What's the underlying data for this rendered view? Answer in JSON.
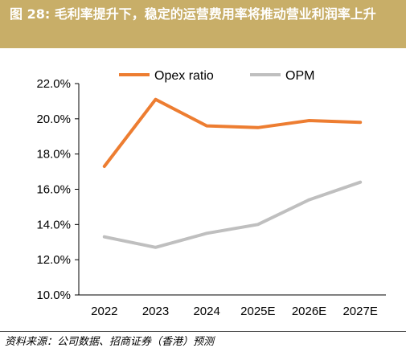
{
  "title": "图 28: 毛利率提升下，稳定的运营费用率将推动营业利润率上升",
  "source": "资料来源：公司数据、招商证券（香港）预测",
  "chart_data": {
    "type": "line",
    "categories": [
      "2022",
      "2023",
      "2024",
      "2025E",
      "2026E",
      "2027E"
    ],
    "series": [
      {
        "name": "Opex ratio",
        "color": "#ed7d31",
        "values": [
          17.3,
          21.1,
          19.6,
          19.5,
          19.9,
          19.8
        ]
      },
      {
        "name": "OPM",
        "color": "#bfbfbf",
        "values": [
          13.3,
          12.7,
          13.5,
          14.0,
          15.4,
          16.4
        ]
      }
    ],
    "yticks": [
      "10.0%",
      "12.0%",
      "14.0%",
      "16.0%",
      "18.0%",
      "20.0%",
      "22.0%"
    ],
    "ylim": [
      10,
      22
    ],
    "legend_position": "top",
    "grid": false
  }
}
